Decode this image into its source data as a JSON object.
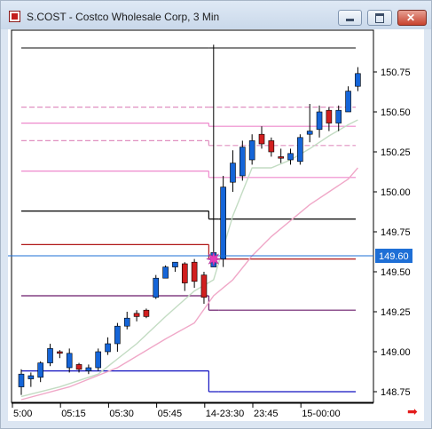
{
  "window": {
    "title": "S.COST - Costco Wholesale Corp, 3 Min",
    "scroll_arrow": "➡"
  },
  "colors": {
    "up_candle": "#1565d8",
    "down_candle": "#d11f1f",
    "last_price_line": "#1e6fd6",
    "last_price_badge": "#1e6fd6"
  },
  "chart_data": {
    "type": "candlestick",
    "title": "",
    "ylim": [
      148.68,
      150.97
    ],
    "y_ticks": [
      {
        "label": "150.75",
        "value": 150.75
      },
      {
        "label": "150.50",
        "value": 150.5
      },
      {
        "label": "150.25",
        "value": 150.25
      },
      {
        "label": "150.00",
        "value": 150.0
      },
      {
        "label": "149.75",
        "value": 149.75
      },
      {
        "label": "149.50",
        "value": 149.5
      },
      {
        "label": "149.25",
        "value": 149.25
      },
      {
        "label": "149.00",
        "value": 149.0
      },
      {
        "label": "148.75",
        "value": 148.75
      }
    ],
    "x_ticks": [
      {
        "label": "5:00",
        "bar": 0
      },
      {
        "label": "05:15",
        "bar": 5
      },
      {
        "label": "05:30",
        "bar": 10
      },
      {
        "label": "05:45",
        "bar": 15
      },
      {
        "label": "14-23:30",
        "bar": 20
      },
      {
        "label": "23:45",
        "bar": 25
      },
      {
        "label": "15-00:00",
        "bar": 30
      }
    ],
    "last_price": {
      "label": "149.60",
      "value": 149.6
    },
    "candles": [
      {
        "bar": 0,
        "o": 148.78,
        "h": 148.89,
        "l": 148.73,
        "c": 148.86
      },
      {
        "bar": 1,
        "o": 148.83,
        "h": 148.87,
        "l": 148.78,
        "c": 148.85
      },
      {
        "bar": 2,
        "o": 148.84,
        "h": 148.94,
        "l": 148.81,
        "c": 148.93
      },
      {
        "bar": 3,
        "o": 148.93,
        "h": 149.05,
        "l": 148.91,
        "c": 149.02
      },
      {
        "bar": 4,
        "o": 149.0,
        "h": 149.01,
        "l": 148.96,
        "c": 148.99
      },
      {
        "bar": 5,
        "o": 148.9,
        "h": 149.02,
        "l": 148.87,
        "c": 148.99
      },
      {
        "bar": 6,
        "o": 148.92,
        "h": 148.93,
        "l": 148.87,
        "c": 148.89
      },
      {
        "bar": 7,
        "o": 148.88,
        "h": 148.92,
        "l": 148.86,
        "c": 148.9
      },
      {
        "bar": 8,
        "o": 148.9,
        "h": 149.02,
        "l": 148.88,
        "c": 149.0
      },
      {
        "bar": 9,
        "o": 149.0,
        "h": 149.09,
        "l": 148.98,
        "c": 149.05
      },
      {
        "bar": 10,
        "o": 149.05,
        "h": 149.18,
        "l": 149.0,
        "c": 149.16
      },
      {
        "bar": 11,
        "o": 149.16,
        "h": 149.25,
        "l": 149.14,
        "c": 149.21
      },
      {
        "bar": 12,
        "o": 149.24,
        "h": 149.26,
        "l": 149.19,
        "c": 149.22
      },
      {
        "bar": 13,
        "o": 149.26,
        "h": 149.27,
        "l": 149.21,
        "c": 149.22
      },
      {
        "bar": 14,
        "o": 149.34,
        "h": 149.48,
        "l": 149.33,
        "c": 149.46
      },
      {
        "bar": 15,
        "o": 149.46,
        "h": 149.54,
        "l": 149.46,
        "c": 149.53
      },
      {
        "bar": 16,
        "o": 149.53,
        "h": 149.56,
        "l": 149.5,
        "c": 149.56
      },
      {
        "bar": 17,
        "o": 149.55,
        "h": 149.56,
        "l": 149.38,
        "c": 149.43
      },
      {
        "bar": 18,
        "o": 149.56,
        "h": 149.58,
        "l": 149.4,
        "c": 149.44
      },
      {
        "bar": 19,
        "o": 149.48,
        "h": 149.5,
        "l": 149.3,
        "c": 149.34
      },
      {
        "bar": 20,
        "o": 149.53,
        "h": 150.92,
        "l": 149.53,
        "c": 149.62
      },
      {
        "bar": 21,
        "o": 149.58,
        "h": 150.1,
        "l": 149.53,
        "c": 150.03
      },
      {
        "bar": 22,
        "o": 150.06,
        "h": 150.26,
        "l": 150.0,
        "c": 150.18
      },
      {
        "bar": 23,
        "o": 150.1,
        "h": 150.32,
        "l": 150.07,
        "c": 150.28
      },
      {
        "bar": 24,
        "o": 150.2,
        "h": 150.36,
        "l": 150.17,
        "c": 150.32
      },
      {
        "bar": 25,
        "o": 150.36,
        "h": 150.41,
        "l": 150.27,
        "c": 150.3
      },
      {
        "bar": 26,
        "o": 150.32,
        "h": 150.34,
        "l": 150.22,
        "c": 150.25
      },
      {
        "bar": 27,
        "o": 150.22,
        "h": 150.27,
        "l": 150.18,
        "c": 150.21
      },
      {
        "bar": 28,
        "o": 150.2,
        "h": 150.27,
        "l": 150.17,
        "c": 150.24
      },
      {
        "bar": 29,
        "o": 150.19,
        "h": 150.36,
        "l": 150.17,
        "c": 150.34
      },
      {
        "bar": 30,
        "o": 150.36,
        "h": 150.55,
        "l": 150.31,
        "c": 150.38
      },
      {
        "bar": 31,
        "o": 150.39,
        "h": 150.54,
        "l": 150.34,
        "c": 150.5
      },
      {
        "bar": 32,
        "o": 150.51,
        "h": 150.53,
        "l": 150.38,
        "c": 150.43
      },
      {
        "bar": 33,
        "o": 150.43,
        "h": 150.54,
        "l": 150.38,
        "c": 150.51
      },
      {
        "bar": 34,
        "o": 150.5,
        "h": 150.66,
        "l": 150.5,
        "c": 150.63
      },
      {
        "bar": 35,
        "o": 150.66,
        "h": 150.78,
        "l": 150.63,
        "c": 150.74
      }
    ],
    "level_lines": [
      {
        "color": "#3c3c3c",
        "segments": [
          {
            "from": 0,
            "to": 19.5,
            "value": 150.9
          },
          {
            "from": 19.5,
            "to": 37,
            "value": 150.9
          }
        ]
      },
      {
        "color": "#e090c0",
        "dash": "6 3",
        "segments": [
          {
            "from": 0,
            "to": 19.5,
            "value": 150.53
          },
          {
            "from": 19.5,
            "to": 37,
            "value": 150.53
          }
        ]
      },
      {
        "color": "#ee88cc",
        "segments": [
          {
            "from": 0,
            "to": 19.5,
            "value": 150.43
          },
          {
            "from": 19.5,
            "to": 20,
            "value": 150.41
          },
          {
            "from": 20,
            "to": 37,
            "value": 150.41
          }
        ]
      },
      {
        "color": "#e090c0",
        "dash": "6 3",
        "segments": [
          {
            "from": 0,
            "to": 19.5,
            "value": 150.32
          },
          {
            "from": 19.5,
            "to": 37,
            "value": 150.29
          }
        ]
      },
      {
        "color": "#ee88cc",
        "segments": [
          {
            "from": 0,
            "to": 19.5,
            "value": 150.13
          },
          {
            "from": 19.5,
            "to": 37,
            "value": 150.09
          }
        ]
      },
      {
        "color": "#000000",
        "segments": [
          {
            "from": 0,
            "to": 19.5,
            "value": 149.88
          },
          {
            "from": 19.5,
            "to": 20.5,
            "value": 149.83
          },
          {
            "from": 20.5,
            "to": 37,
            "value": 149.83
          }
        ]
      },
      {
        "color": "#b01818",
        "segments": [
          {
            "from": 0,
            "to": 19.5,
            "value": 149.67
          },
          {
            "from": 19.5,
            "to": 20.5,
            "value": 149.58
          },
          {
            "from": 20.5,
            "to": 37,
            "value": 149.58
          }
        ]
      },
      {
        "color": "#6a1a6a",
        "segments": [
          {
            "from": 0,
            "to": 19.5,
            "value": 149.35
          },
          {
            "from": 19.5,
            "to": 20.5,
            "value": 149.26
          },
          {
            "from": 20.5,
            "to": 37,
            "value": 149.26
          }
        ]
      },
      {
        "color": "#1010c0",
        "segments": [
          {
            "from": 0,
            "to": 19.5,
            "value": 148.88
          },
          {
            "from": 19.5,
            "to": 20.5,
            "value": 148.75
          },
          {
            "from": 20.5,
            "to": 37,
            "value": 148.75
          }
        ]
      }
    ],
    "moving_averages": [
      {
        "color": "#c3dcc3",
        "points": [
          [
            0,
            148.72
          ],
          [
            4,
            148.78
          ],
          [
            8,
            148.86
          ],
          [
            12,
            149.05
          ],
          [
            15,
            149.22
          ],
          [
            18,
            149.38
          ],
          [
            20,
            149.45
          ],
          [
            22,
            149.85
          ],
          [
            24,
            150.15
          ],
          [
            26,
            150.15
          ],
          [
            28,
            150.2
          ],
          [
            30,
            150.27
          ],
          [
            32,
            150.35
          ],
          [
            34,
            150.42
          ],
          [
            35,
            150.45
          ]
        ]
      },
      {
        "color": "#f0a8c8",
        "points": [
          [
            0,
            148.7
          ],
          [
            5,
            148.78
          ],
          [
            10,
            148.9
          ],
          [
            15,
            149.08
          ],
          [
            18,
            149.18
          ],
          [
            20,
            149.35
          ],
          [
            22,
            149.45
          ],
          [
            24,
            149.6
          ],
          [
            26,
            149.72
          ],
          [
            28,
            149.82
          ],
          [
            30,
            149.92
          ],
          [
            32,
            150.0
          ],
          [
            34,
            150.08
          ],
          [
            35,
            150.15
          ]
        ]
      }
    ],
    "marker": {
      "bar": 20,
      "value": 149.58,
      "color": "#e43fb9"
    }
  }
}
